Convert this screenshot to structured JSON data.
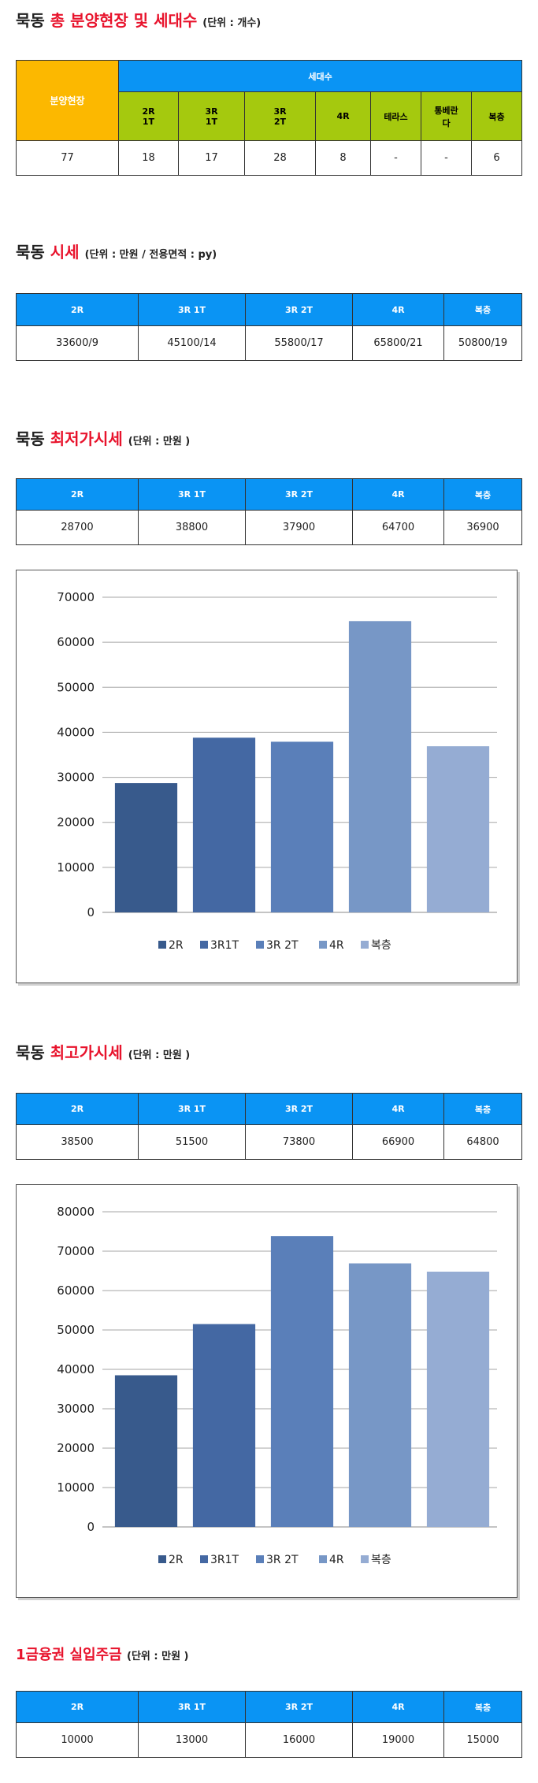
{
  "section1": {
    "title_main": "묵동",
    "title_highlight": "총 분양현장 및 세대수",
    "title_unit": "(단위 : 개수)",
    "header_left": "분양현장",
    "header_group": "세대수",
    "columns": [
      "2R\n1T",
      "3R\n1T",
      "3R\n2T",
      "4R",
      "테라스",
      "통베란\n다",
      "복층"
    ],
    "values": [
      "77",
      "18",
      "17",
      "28",
      "8",
      "-",
      "-",
      "6"
    ]
  },
  "section2": {
    "title_main": "묵동",
    "title_highlight": "시세",
    "title_unit": "(단위 : 만원 / 전용면적 : py)",
    "columns": [
      "2R",
      "3R 1T",
      "3R 2T",
      "4R",
      "복층"
    ],
    "values": [
      "33600/9",
      "45100/14",
      "55800/17",
      "65800/21",
      "50800/19"
    ]
  },
  "section3": {
    "title_main": "묵동",
    "title_highlight": "최저가시세",
    "title_unit": "(단위 : 만원 )",
    "columns": [
      "2R",
      "3R 1T",
      "3R 2T",
      "4R",
      "복층"
    ],
    "values": [
      "28700",
      "38800",
      "37900",
      "64700",
      "36900"
    ]
  },
  "section4": {
    "title_main": "묵동",
    "title_highlight": "최고가시세",
    "title_unit": "(단위 : 만원 )",
    "columns": [
      "2R",
      "3R 1T",
      "3R 2T",
      "4R",
      "복층"
    ],
    "values": [
      "38500",
      "51500",
      "73800",
      "66900",
      "64800"
    ]
  },
  "section5": {
    "title_highlight": "1금융권 실입주금",
    "title_unit": "(단위 : 만원 )",
    "columns": [
      "2R",
      "3R 1T",
      "3R 2T",
      "4R",
      "복층"
    ],
    "values": [
      "10000",
      "13000",
      "16000",
      "19000",
      "15000"
    ]
  },
  "chart_data": [
    {
      "type": "bar",
      "title": "",
      "categories": [
        "2R",
        "3R1T",
        "3R 2T",
        "4R",
        "복층"
      ],
      "values": [
        28700,
        38800,
        37900,
        64700,
        36900
      ],
      "ylim": [
        0,
        70000
      ],
      "yticks": [
        0,
        10000,
        20000,
        30000,
        40000,
        50000,
        60000,
        70000
      ],
      "legend": [
        "2R",
        "3R1T",
        "3R 2T",
        "4R",
        "복층"
      ],
      "legend_position": "bottom",
      "grid": true,
      "colors": [
        "#385a8c",
        "#4468a3",
        "#5a7fb9",
        "#7797c6",
        "#95acd3"
      ]
    },
    {
      "type": "bar",
      "title": "",
      "categories": [
        "2R",
        "3R1T",
        "3R 2T",
        "4R",
        "복층"
      ],
      "values": [
        38500,
        51500,
        73800,
        66900,
        64800
      ],
      "ylim": [
        0,
        80000
      ],
      "yticks": [
        0,
        10000,
        20000,
        30000,
        40000,
        50000,
        60000,
        70000,
        80000
      ],
      "legend": [
        "2R",
        "3R1T",
        "3R 2T",
        "4R",
        "복층"
      ],
      "legend_position": "bottom",
      "grid": true,
      "colors": [
        "#385a8c",
        "#4468a3",
        "#5a7fb9",
        "#7797c6",
        "#95acd3"
      ]
    }
  ]
}
